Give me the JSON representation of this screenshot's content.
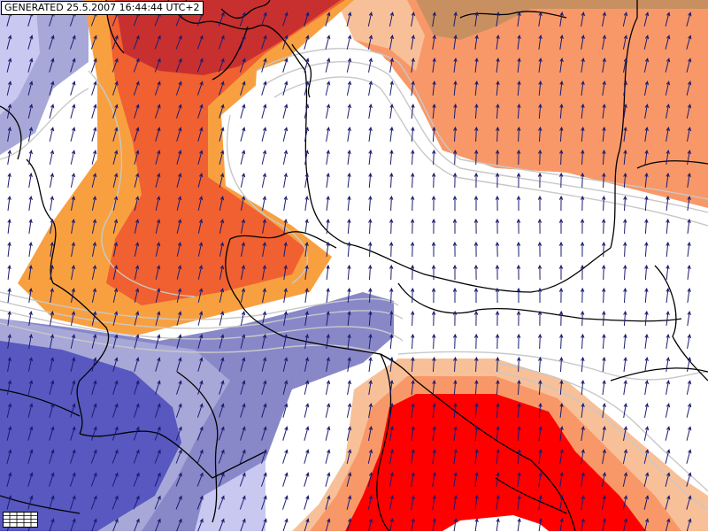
{
  "map": {
    "generated_label": "GENERATED 25.5.2007 16:44:44 UTC+2",
    "colors": {
      "dark_red": "#c83030",
      "red": "#ff0000",
      "red_orange": "#f06030",
      "orange": "#f8a040",
      "salmon": "#f89868",
      "light_orange": "#f8c098",
      "brown": "#c89060",
      "white": "#ffffff",
      "light_blue": "#c8c8f0",
      "blue_light": "#a8a8d8",
      "blue_mid": "#8888c8",
      "blue_dark": "#5858c0",
      "contour": "#c8c8c8",
      "border": "#000000",
      "wind_arrow": "#1a1a70"
    },
    "legend_icon": "legend-grid-icon"
  }
}
